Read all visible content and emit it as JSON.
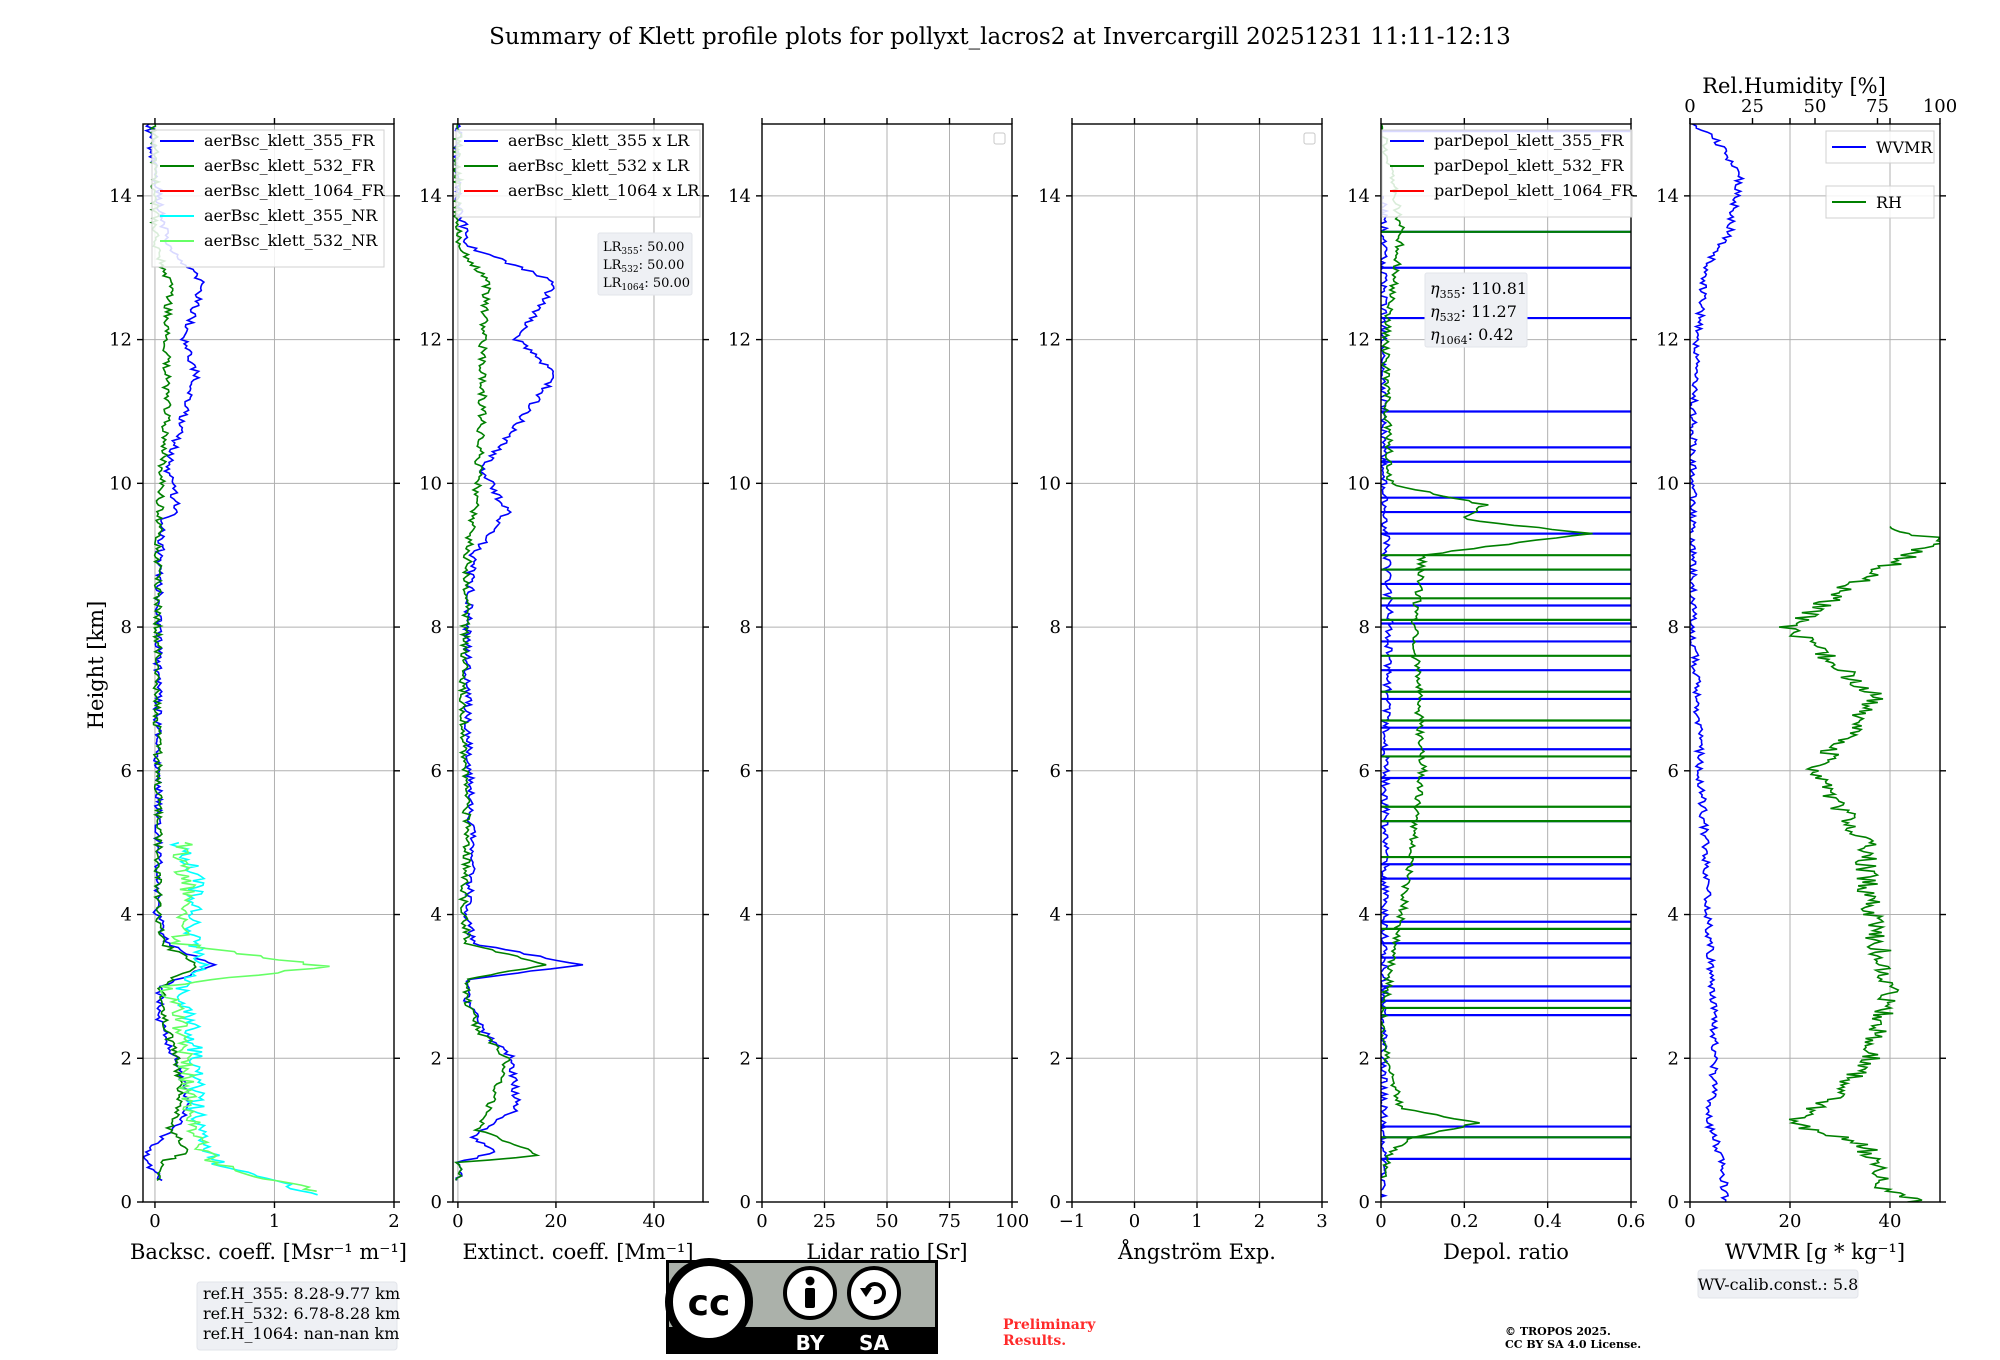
{
  "title": "Summary of Klett profile plots for pollyxt_lacros2 at Invercargill 20251231 11:11-12:13",
  "colors": {
    "blue": "#0000ff",
    "green": "#008000",
    "red": "#ff0000",
    "cyan": "#00ffff",
    "lime": "#66ff66",
    "preliminary": "#ff2a2a"
  },
  "chart_data": [
    {
      "type": "line",
      "xlabel": "Backsc. coeff. [Msr⁻¹ m⁻¹]",
      "ylabel": "Height [km]",
      "xlim": [
        -0.1,
        2
      ],
      "ylim": [
        0,
        15
      ],
      "xticks": [
        0,
        1,
        2
      ],
      "yticks": [
        0,
        2,
        4,
        6,
        8,
        10,
        12,
        14
      ],
      "grid": true,
      "legend_position": "top-right",
      "series": [
        {
          "name": "aerBsc_klett_355_FR",
          "color": "blue",
          "points": [
            [
              0.05,
              0.3
            ],
            [
              -0.1,
              0.6
            ],
            [
              0.02,
              0.85
            ],
            [
              0.15,
              1.0
            ],
            [
              0.28,
              1.3
            ],
            [
              0.22,
              1.8
            ],
            [
              0.12,
              2.2
            ],
            [
              0.03,
              2.6
            ],
            [
              0.05,
              3.0
            ],
            [
              0.48,
              3.3
            ],
            [
              0.1,
              3.6
            ],
            [
              0.02,
              4.0
            ],
            [
              0.03,
              5.0
            ],
            [
              0.02,
              6.5
            ],
            [
              0.03,
              8.0
            ],
            [
              0.05,
              9.5
            ],
            [
              0.2,
              9.6
            ],
            [
              0.1,
              10.2
            ],
            [
              0.35,
              11.5
            ],
            [
              0.25,
              12.0
            ],
            [
              0.4,
              12.8
            ],
            [
              0.1,
              13.3
            ],
            [
              0.0,
              14.3
            ],
            [
              -0.05,
              15.0
            ]
          ]
        },
        {
          "name": "aerBsc_klett_532_FR",
          "color": "green",
          "points": [
            [
              0.05,
              0.3
            ],
            [
              0.05,
              0.55
            ],
            [
              0.3,
              0.7
            ],
            [
              0.12,
              1.0
            ],
            [
              0.22,
              1.4
            ],
            [
              0.18,
              2.0
            ],
            [
              0.08,
              2.5
            ],
            [
              0.05,
              3.0
            ],
            [
              0.35,
              3.3
            ],
            [
              0.06,
              3.6
            ],
            [
              0.02,
              4.0
            ],
            [
              0.03,
              5.0
            ],
            [
              0.02,
              7.0
            ],
            [
              0.03,
              9.0
            ],
            [
              0.05,
              10.0
            ],
            [
              0.1,
              11.0
            ],
            [
              0.1,
              12.0
            ],
            [
              0.12,
              12.8
            ],
            [
              0.0,
              13.3
            ],
            [
              0.0,
              15.0
            ]
          ]
        },
        {
          "name": "aerBsc_klett_1064_FR",
          "color": "red",
          "points": []
        },
        {
          "name": "aerBsc_klett_355_NR",
          "color": "cyan",
          "points": [
            [
              1.3,
              0.1
            ],
            [
              1.0,
              0.3
            ],
            [
              0.55,
              0.5
            ],
            [
              0.4,
              0.8
            ],
            [
              0.35,
              1.3
            ],
            [
              0.35,
              2.0
            ],
            [
              0.3,
              2.5
            ],
            [
              0.2,
              3.0
            ],
            [
              0.4,
              3.3
            ],
            [
              0.3,
              3.8
            ],
            [
              0.35,
              4.5
            ],
            [
              0.2,
              5.0
            ]
          ]
        },
        {
          "name": "aerBsc_klett_532_NR",
          "color": "lime",
          "points": [
            [
              1.35,
              0.15
            ],
            [
              0.9,
              0.35
            ],
            [
              0.5,
              0.55
            ],
            [
              0.38,
              0.8
            ],
            [
              0.3,
              1.2
            ],
            [
              0.25,
              2.0
            ],
            [
              0.2,
              2.6
            ],
            [
              0.1,
              3.0
            ],
            [
              1.42,
              3.28
            ],
            [
              0.2,
              3.6
            ],
            [
              0.3,
              4.2
            ],
            [
              0.2,
              4.8
            ],
            [
              0.25,
              5.0
            ]
          ]
        }
      ],
      "annotations": [
        "ref.H_355: 8.28-9.77 km",
        "ref.H_532: 6.78-8.28 km",
        "ref.H_1064: nan-nan km"
      ]
    },
    {
      "type": "line",
      "xlabel": "Extinct. coeff. [Mm⁻¹]",
      "xlim": [
        -1,
        50
      ],
      "ylim": [
        0,
        15
      ],
      "xticks": [
        0,
        20,
        40
      ],
      "yticks": [
        0,
        2,
        4,
        6,
        8,
        10,
        12,
        14
      ],
      "grid": true,
      "legend_position": "top-right",
      "series": [
        {
          "name": "aerBsc_klett_355 x LR",
          "color": "blue",
          "points": [
            [
              0.0,
              0.3
            ],
            [
              0.0,
              0.55
            ],
            [
              8.0,
              0.7
            ],
            [
              3.0,
              0.9
            ],
            [
              12.0,
              1.3
            ],
            [
              11.0,
              2.0
            ],
            [
              5.0,
              2.4
            ],
            [
              2.0,
              2.8
            ],
            [
              2.0,
              3.1
            ],
            [
              25.0,
              3.3
            ],
            [
              3.0,
              3.6
            ],
            [
              2.0,
              4.0
            ],
            [
              3.0,
              5.0
            ],
            [
              2.0,
              6.5
            ],
            [
              2.0,
              8.0
            ],
            [
              3.0,
              9.0
            ],
            [
              10.0,
              9.6
            ],
            [
              5.0,
              10.2
            ],
            [
              20.0,
              11.5
            ],
            [
              12.0,
              12.0
            ],
            [
              20.0,
              12.8
            ],
            [
              2.0,
              13.3
            ],
            [
              0.0,
              14.0
            ],
            [
              0.0,
              15.0
            ]
          ]
        },
        {
          "name": "aerBsc_klett_532 x LR",
          "color": "green",
          "points": [
            [
              0.0,
              0.3
            ],
            [
              0.0,
              0.55
            ],
            [
              17.0,
              0.65
            ],
            [
              4.0,
              1.0
            ],
            [
              7.0,
              1.4
            ],
            [
              10.0,
              2.0
            ],
            [
              4.0,
              2.4
            ],
            [
              2.0,
              2.8
            ],
            [
              2.0,
              3.1
            ],
            [
              18.0,
              3.3
            ],
            [
              2.0,
              3.6
            ],
            [
              1.0,
              4.0
            ],
            [
              2.0,
              5.0
            ],
            [
              1.0,
              7.0
            ],
            [
              2.0,
              9.0
            ],
            [
              4.0,
              10.0
            ],
            [
              5.0,
              11.0
            ],
            [
              5.0,
              12.0
            ],
            [
              6.0,
              12.8
            ],
            [
              0.0,
              13.3
            ],
            [
              0.0,
              15.0
            ]
          ]
        },
        {
          "name": "aerBsc_klett_1064 x LR",
          "color": "red",
          "points": []
        }
      ],
      "annotations": [
        "LR",
        "355",
        ": 50.00",
        "LR",
        "532",
        ": 50.00",
        "LR",
        "1064",
        ": 50.00"
      ]
    },
    {
      "type": "line",
      "xlabel": "Lidar ratio [Sr]",
      "xlim": [
        0,
        100
      ],
      "ylim": [
        0,
        15
      ],
      "xticks": [
        0,
        25,
        50,
        75,
        100
      ],
      "yticks": [
        0,
        2,
        4,
        6,
        8,
        10,
        12,
        14
      ],
      "grid": true,
      "series": []
    },
    {
      "type": "line",
      "xlabel": "Ångström Exp.",
      "xlim": [
        -1,
        3
      ],
      "ylim": [
        0,
        15
      ],
      "xticks": [
        -1,
        0,
        1,
        2,
        3
      ],
      "yticks": [
        0,
        2,
        4,
        6,
        8,
        10,
        12,
        14
      ],
      "grid": true,
      "series": []
    },
    {
      "type": "line",
      "xlabel": "Depol. ratio",
      "xlim": [
        0,
        0.6
      ],
      "ylim": [
        0,
        15
      ],
      "xticks": [
        0.0,
        0.2,
        0.4,
        0.6
      ],
      "yticks": [
        0,
        2,
        4,
        6,
        8,
        10,
        12,
        14
      ],
      "grid": true,
      "legend_position": "top-right",
      "series": [
        {
          "name": "parDepol_klett_355_FR",
          "color": "blue",
          "spikes": [
            0.6,
            0.9,
            1.05,
            2.6,
            2.8,
            3.0,
            3.4,
            3.6,
            3.9,
            4.5,
            4.7,
            5.3,
            5.9,
            6.3,
            6.6,
            7.0,
            7.4,
            7.8,
            8.05,
            8.3,
            8.6,
            8.8,
            9.3,
            9.6,
            9.8,
            10.3,
            10.5,
            11.0,
            12.3,
            13.0,
            13.5,
            14.9
          ],
          "points": [
            [
              0.0,
              0.0
            ],
            [
              0.005,
              0.5
            ],
            [
              0.005,
              1.5
            ],
            [
              0.005,
              2.5
            ],
            [
              0.01,
              6.0
            ],
            [
              0.02,
              8.0
            ],
            [
              0.01,
              9.5
            ],
            [
              0.005,
              10.0
            ],
            [
              0.005,
              14.0
            ]
          ]
        },
        {
          "name": "parDepol_klett_532_FR",
          "color": "green",
          "spikes": [
            0.9,
            2.7,
            3.8,
            4.8,
            5.3,
            5.5,
            6.2,
            6.7,
            7.1,
            7.6,
            8.1,
            8.4,
            8.8,
            9.0,
            13.5
          ],
          "points": [
            [
              0.0,
              0.3
            ],
            [
              0.02,
              0.7
            ],
            [
              0.08,
              0.9
            ],
            [
              0.23,
              1.1
            ],
            [
              0.05,
              1.3
            ],
            [
              0.02,
              1.8
            ],
            [
              0.0,
              2.5
            ],
            [
              0.05,
              4.0
            ],
            [
              0.1,
              6.0
            ],
            [
              0.08,
              8.0
            ],
            [
              0.1,
              9.0
            ],
            [
              0.5,
              9.3
            ],
            [
              0.2,
              9.5
            ],
            [
              0.25,
              9.7
            ],
            [
              0.02,
              10.0
            ],
            [
              0.01,
              12.0
            ],
            [
              0.05,
              13.5
            ],
            [
              0.0,
              15.0
            ]
          ]
        },
        {
          "name": "parDepol_klett_1064_FR",
          "color": "red",
          "points": []
        }
      ],
      "annotations": [
        "η",
        "355",
        ": 110.81",
        "η",
        "532",
        ": 11.27",
        "η",
        "1064",
        ": 0.42"
      ]
    },
    {
      "type": "line",
      "xlabel": "WVMR [g * kg⁻¹]",
      "x2label": "Rel.Humidity [%]",
      "xlim": [
        0,
        50
      ],
      "x2lim": [
        0,
        100
      ],
      "ylim": [
        0,
        15
      ],
      "xticks": [
        0,
        20,
        40
      ],
      "x2ticks": [
        0,
        25,
        50,
        75,
        100
      ],
      "yticks": [
        0,
        2,
        4,
        6,
        8,
        10,
        12,
        14
      ],
      "grid": true,
      "legend_position": "top-right",
      "series": [
        {
          "name": "WVMR",
          "color": "blue",
          "axis": "bottom",
          "points": [
            [
              7.0,
              0.0
            ],
            [
              6.5,
              0.5
            ],
            [
              5.0,
              0.9
            ],
            [
              3.5,
              1.1
            ],
            [
              4.5,
              1.5
            ],
            [
              5.0,
              2.0
            ],
            [
              4.5,
              3.0
            ],
            [
              3.5,
              4.0
            ],
            [
              3.0,
              5.0
            ],
            [
              2.0,
              6.0
            ],
            [
              1.5,
              7.0
            ],
            [
              0.5,
              8.0
            ],
            [
              0.5,
              9.0
            ],
            [
              0.5,
              10.0
            ],
            [
              0.5,
              11.0
            ],
            [
              1.5,
              12.0
            ],
            [
              3.0,
              13.0
            ],
            [
              8.0,
              13.5
            ],
            [
              10.0,
              14.3
            ],
            [
              5.0,
              14.8
            ],
            [
              0.5,
              15.0
            ]
          ]
        },
        {
          "name": "RH",
          "color": "green",
          "axis": "top",
          "points": [
            [
              90.0,
              0.0
            ],
            [
              78.0,
              0.2
            ],
            [
              70.0,
              0.8
            ],
            [
              40.0,
              1.1
            ],
            [
              60.0,
              1.5
            ],
            [
              72.0,
              2.0
            ],
            [
              80.0,
              3.0
            ],
            [
              72.0,
              4.0
            ],
            [
              70.0,
              5.0
            ],
            [
              50.0,
              6.0
            ],
            [
              75.0,
              7.0
            ],
            [
              40.0,
              8.0
            ],
            [
              65.0,
              8.6
            ],
            [
              100.0,
              9.2
            ],
            [
              80.0,
              9.4
            ]
          ]
        }
      ],
      "annotations": [
        "WV-calib.const.: 5.8"
      ]
    }
  ],
  "license_badge": {
    "cc": "cc",
    "by": "BY",
    "sa": "SA"
  },
  "preliminary": {
    "line1": "Preliminary",
    "line2": "Results."
  },
  "copyright": {
    "line1": "© TROPOS 2025.",
    "line2": "CC BY SA 4.0 License."
  }
}
